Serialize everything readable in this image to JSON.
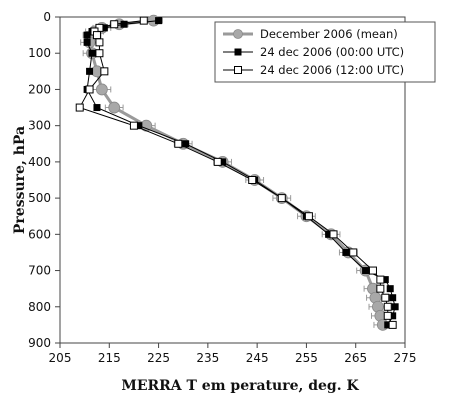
{
  "chart_data": {
    "type": "line",
    "title": "",
    "xlabel": "MERRA T em perature, deg. K",
    "ylabel": "Pressure, hPa",
    "xlim": [
      205,
      275
    ],
    "ylim": [
      900,
      0
    ],
    "y_inverted": true,
    "xticks": [
      205,
      215,
      225,
      235,
      245,
      255,
      265,
      275
    ],
    "yticks": [
      0,
      100,
      200,
      300,
      400,
      500,
      600,
      700,
      800,
      900
    ],
    "grid": false,
    "legend_position": "top-right",
    "series": [
      {
        "name": "December 2006 (mean)",
        "style": "circle-gray",
        "color": "#9a9a9a",
        "error_bars": true,
        "points": [
          {
            "x": 224,
            "y": 10
          },
          {
            "x": 217,
            "y": 20
          },
          {
            "x": 213.5,
            "y": 30
          },
          {
            "x": 212,
            "y": 40
          },
          {
            "x": 211.5,
            "y": 50
          },
          {
            "x": 211,
            "y": 70
          },
          {
            "x": 211.5,
            "y": 100
          },
          {
            "x": 212.5,
            "y": 150
          },
          {
            "x": 213.5,
            "y": 200
          },
          {
            "x": 216,
            "y": 250
          },
          {
            "x": 222.5,
            "y": 300
          },
          {
            "x": 230,
            "y": 350
          },
          {
            "x": 238,
            "y": 400
          },
          {
            "x": 244.5,
            "y": 450
          },
          {
            "x": 250,
            "y": 500
          },
          {
            "x": 255,
            "y": 550
          },
          {
            "x": 260,
            "y": 600
          },
          {
            "x": 263.5,
            "y": 650
          },
          {
            "x": 267,
            "y": 700
          },
          {
            "x": 268.5,
            "y": 750
          },
          {
            "x": 269,
            "y": 775
          },
          {
            "x": 269.5,
            "y": 800
          },
          {
            "x": 270,
            "y": 825
          },
          {
            "x": 270.5,
            "y": 850
          }
        ]
      },
      {
        "name": "24 dec 2006 (00:00 UTC)",
        "style": "square-filled",
        "color": "#000000",
        "points": [
          {
            "x": 225,
            "y": 10
          },
          {
            "x": 218,
            "y": 20
          },
          {
            "x": 214,
            "y": 30
          },
          {
            "x": 211.5,
            "y": 40
          },
          {
            "x": 210.5,
            "y": 50
          },
          {
            "x": 210.5,
            "y": 70
          },
          {
            "x": 211.5,
            "y": 100
          },
          {
            "x": 211,
            "y": 150
          },
          {
            "x": 210.5,
            "y": 200
          },
          {
            "x": 212.5,
            "y": 250
          },
          {
            "x": 221,
            "y": 300
          },
          {
            "x": 230.5,
            "y": 350
          },
          {
            "x": 238,
            "y": 400
          },
          {
            "x": 244.5,
            "y": 450
          },
          {
            "x": 250,
            "y": 500
          },
          {
            "x": 255,
            "y": 550
          },
          {
            "x": 259.5,
            "y": 600
          },
          {
            "x": 263,
            "y": 650
          },
          {
            "x": 267,
            "y": 700
          },
          {
            "x": 271,
            "y": 725
          },
          {
            "x": 272,
            "y": 750
          },
          {
            "x": 272.5,
            "y": 775
          },
          {
            "x": 273,
            "y": 800
          },
          {
            "x": 272.5,
            "y": 825
          },
          {
            "x": 271.5,
            "y": 850
          }
        ]
      },
      {
        "name": "24 dec 2006 (12:00 UTC)",
        "style": "square-open",
        "color": "#000000",
        "points": [
          {
            "x": 222,
            "y": 10
          },
          {
            "x": 216,
            "y": 20
          },
          {
            "x": 213,
            "y": 30
          },
          {
            "x": 212,
            "y": 40
          },
          {
            "x": 212.5,
            "y": 50
          },
          {
            "x": 213,
            "y": 70
          },
          {
            "x": 213,
            "y": 100
          },
          {
            "x": 214,
            "y": 150
          },
          {
            "x": 211,
            "y": 200
          },
          {
            "x": 209,
            "y": 250
          },
          {
            "x": 220,
            "y": 300
          },
          {
            "x": 229,
            "y": 350
          },
          {
            "x": 237,
            "y": 400
          },
          {
            "x": 244,
            "y": 450
          },
          {
            "x": 250,
            "y": 500
          },
          {
            "x": 255.5,
            "y": 550
          },
          {
            "x": 260.5,
            "y": 600
          },
          {
            "x": 264.5,
            "y": 650
          },
          {
            "x": 268.5,
            "y": 700
          },
          {
            "x": 270,
            "y": 725
          },
          {
            "x": 270,
            "y": 750
          },
          {
            "x": 271,
            "y": 775
          },
          {
            "x": 271.5,
            "y": 800
          },
          {
            "x": 271.5,
            "y": 825
          },
          {
            "x": 272.5,
            "y": 850
          }
        ]
      }
    ]
  }
}
